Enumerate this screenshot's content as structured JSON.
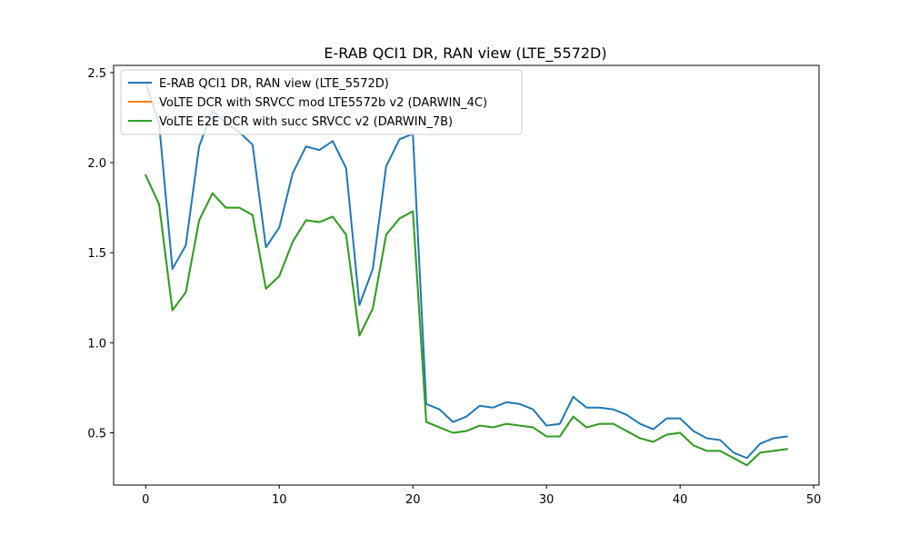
{
  "chart_data": {
    "type": "line",
    "title": "E-RAB QCI1 DR, RAN view (LTE_5572D)",
    "xlabel": "",
    "ylabel": "",
    "xlim": [
      -2.4,
      50.4
    ],
    "ylim": [
      0.21,
      2.54
    ],
    "xticks": [
      0,
      10,
      20,
      30,
      40,
      50
    ],
    "yticks": [
      0.5,
      1.0,
      1.5,
      2.0,
      2.5
    ],
    "xtick_labels": [
      "0",
      "10",
      "20",
      "30",
      "40",
      "50"
    ],
    "ytick_labels": [
      "0.5",
      "1.0",
      "1.5",
      "2.0",
      "2.5"
    ],
    "grid": false,
    "legend_position": "upper-left",
    "x": [
      0,
      1,
      2,
      3,
      4,
      5,
      6,
      7,
      8,
      9,
      10,
      11,
      12,
      13,
      14,
      15,
      16,
      17,
      18,
      19,
      20,
      21,
      22,
      23,
      24,
      25,
      26,
      27,
      28,
      29,
      30,
      31,
      32,
      33,
      34,
      35,
      36,
      37,
      38,
      39,
      40,
      41,
      42,
      43,
      44,
      45,
      46,
      47,
      48
    ],
    "series": [
      {
        "name": "E-RAB QCI1 DR, RAN view (LTE_5572D)",
        "color": "#1f77b4",
        "values": [
          2.44,
          2.22,
          1.41,
          1.54,
          2.09,
          2.29,
          2.22,
          2.17,
          2.1,
          1.53,
          1.64,
          1.94,
          2.09,
          2.07,
          2.12,
          1.97,
          1.21,
          1.41,
          1.98,
          2.13,
          2.16,
          0.66,
          0.63,
          0.56,
          0.59,
          0.65,
          0.64,
          0.67,
          0.66,
          0.63,
          0.54,
          0.55,
          0.7,
          0.64,
          0.64,
          0.63,
          0.6,
          0.55,
          0.52,
          0.58,
          0.58,
          0.51,
          0.47,
          0.46,
          0.39,
          0.36,
          0.44,
          0.47,
          0.48
        ]
      },
      {
        "name": "VoLTE DCR with SRVCC mod LTE5572b v2 (DARWIN_4C)",
        "color": "#ff7f0e",
        "values": [
          1.93,
          1.77,
          1.18,
          1.28,
          1.68,
          1.83,
          1.75,
          1.75,
          1.71,
          1.3,
          1.37,
          1.56,
          1.68,
          1.67,
          1.7,
          1.6,
          1.04,
          1.19,
          1.6,
          1.69,
          1.73,
          0.56,
          0.53,
          0.5,
          0.51,
          0.54,
          0.53,
          0.55,
          0.54,
          0.53,
          0.48,
          0.48,
          0.59,
          0.53,
          0.55,
          0.55,
          0.51,
          0.47,
          0.45,
          0.49,
          0.5,
          0.43,
          0.4,
          0.4,
          0.36,
          0.32,
          0.39,
          0.4,
          0.41
        ]
      },
      {
        "name": "VoLTE E2E DCR with succ SRVCC v2 (DARWIN_7B)",
        "color": "#2ca02c",
        "values": [
          1.93,
          1.77,
          1.18,
          1.28,
          1.68,
          1.83,
          1.75,
          1.75,
          1.71,
          1.3,
          1.37,
          1.56,
          1.68,
          1.67,
          1.7,
          1.6,
          1.04,
          1.19,
          1.6,
          1.69,
          1.73,
          0.56,
          0.53,
          0.5,
          0.51,
          0.54,
          0.53,
          0.55,
          0.54,
          0.53,
          0.48,
          0.48,
          0.59,
          0.53,
          0.55,
          0.55,
          0.51,
          0.47,
          0.45,
          0.49,
          0.5,
          0.43,
          0.4,
          0.4,
          0.36,
          0.32,
          0.39,
          0.4,
          0.41
        ]
      }
    ]
  }
}
